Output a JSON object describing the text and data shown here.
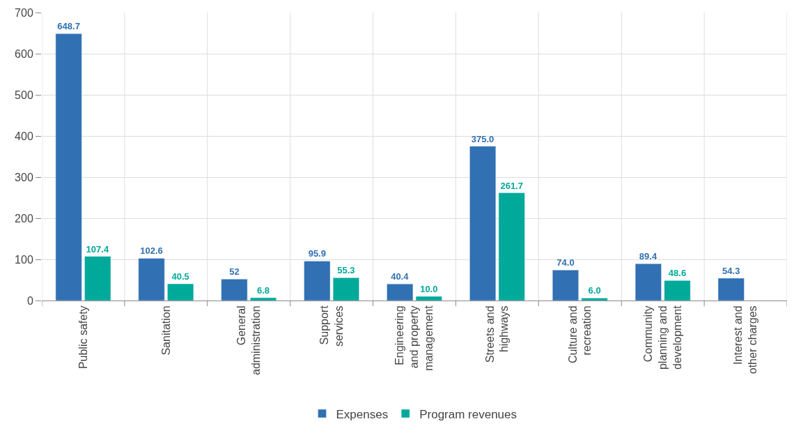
{
  "chart_data": {
    "type": "bar",
    "categories": [
      "Public safety",
      "Sanitation",
      "General administration",
      "Support services",
      "Engineering and property management",
      "Streets and highways",
      "Culture and recreation",
      "Community planning and development",
      "Interest and other charges"
    ],
    "series": [
      {
        "name": "Expenses",
        "color": "#3070b3",
        "values": [
          648.7,
          102.6,
          52,
          95.9,
          40.4,
          375.0,
          74.0,
          89.4,
          54.3
        ],
        "value_labels": [
          "648.7",
          "102.6",
          "52",
          "95.9",
          "40.4",
          "375.0",
          "74.0",
          "89.4",
          "54.3"
        ]
      },
      {
        "name": "Program revenues",
        "color": "#00a99a",
        "values": [
          107.4,
          40.5,
          6.8,
          55.3,
          10.0,
          261.7,
          6.0,
          48.6,
          null
        ],
        "value_labels": [
          "107.4",
          "40.5",
          "6.8",
          "55.3",
          "10.0",
          "261.7",
          "6.0",
          "48.6",
          null
        ]
      }
    ],
    "ylim": [
      0,
      700
    ],
    "yticks": [
      0,
      100,
      200,
      300,
      400,
      500,
      600,
      700
    ],
    "grid": true,
    "legend": "bottom"
  }
}
